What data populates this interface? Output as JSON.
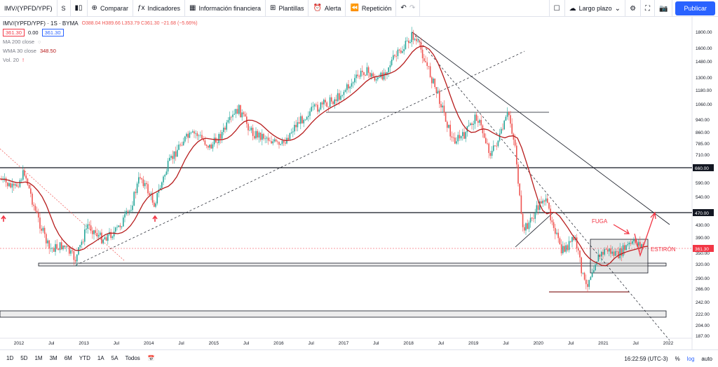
{
  "toolbar": {
    "symbol": "IMV/(YPFD/YPF)",
    "interval": "S",
    "compare": "Comparar",
    "indicators": "Indicadores",
    "financial": "Información financiera",
    "templates": "Plantillas",
    "alert": "Alerta",
    "replay": "Repetición",
    "timeframe": "Largo plazo",
    "publish": "Publicar"
  },
  "legend": {
    "title": "IMV/(YPFD/YPF) · 1S · BYMA",
    "ohlc": "O388.04  H389.66  L353.79  C361.30  −21.68 (−5.66%)",
    "price_box_sell": "361.30",
    "spread": "0.00",
    "price_box_buy": "361.30",
    "ma200": "MA 200 close",
    "wma30": "WMA 30 close",
    "wma30_value": "348.50",
    "vol": "Vol. 20",
    "vol_alert": "!"
  },
  "annotations": {
    "fuga": "FUGA",
    "estiron": "ESTIRÓN"
  },
  "colors": {
    "accent": "#2962ff",
    "wma": "#b71c1c",
    "up": "#26a69a",
    "down": "#ef5350",
    "annotation": "#f23645"
  },
  "chart_data": {
    "type": "candlestick",
    "price_labels": [
      "1800.00",
      "1600.00",
      "1480.00",
      "1300.00",
      "1180.00",
      "1060.00",
      "940.00",
      "860.00",
      "785.00",
      "710.00",
      "660.00",
      "590.00",
      "540.00",
      "470.00",
      "430.00",
      "390.00",
      "361.30",
      "350.00",
      "320.00",
      "290.00",
      "266.00",
      "242.00",
      "222.00",
      "204.00",
      "187.00"
    ],
    "year_labels": [
      "2012",
      "Jul",
      "2013",
      "Jul",
      "2014",
      "Jul",
      "2015",
      "Jul",
      "2016",
      "Jul",
      "2017",
      "Jul",
      "2018",
      "Jul",
      "2019",
      "Jul",
      "2020",
      "Jul",
      "2021",
      "Jul",
      "2022"
    ],
    "horizontal_levels": [
      660.0,
      470.0
    ],
    "current_price": 361.3,
    "ylim": [
      187,
      1800
    ],
    "scale": "log"
  },
  "bottom": {
    "ranges": [
      "1D",
      "5D",
      "1M",
      "3M",
      "6M",
      "YTD",
      "1A",
      "5A",
      "Todos"
    ],
    "time": "16:22:59 (UTC-3)",
    "percent": "%",
    "log": "log",
    "auto": "auto"
  }
}
